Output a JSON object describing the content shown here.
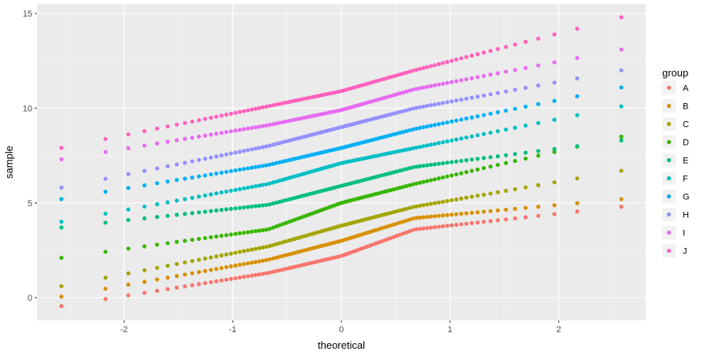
{
  "chart_data": {
    "type": "scatter",
    "xlabel": "theoretical",
    "ylabel": "sample",
    "xlim": [
      -2.8,
      2.8
    ],
    "ylim": [
      -1.2,
      15.5
    ],
    "x_ticks": [
      -2,
      -1,
      0,
      1,
      2
    ],
    "x_tick_labels": [
      "-2",
      "-1",
      "0",
      "1",
      "2"
    ],
    "y_ticks": [
      0,
      5,
      10,
      15
    ],
    "y_tick_labels": [
      "0",
      "5",
      "10",
      "15"
    ],
    "grid": true,
    "legend": {
      "title": "group",
      "position": "right"
    },
    "n_points_per_series": 100,
    "series": [
      {
        "name": "A",
        "color": "#F8766D",
        "x_range": [
          -2.58,
          2.58
        ],
        "y_min": -0.45,
        "y_q1": 1.3,
        "y_median": 2.2,
        "y_q3": 3.6,
        "y_max": 4.8
      },
      {
        "name": "B",
        "color": "#D89000",
        "x_range": [
          -2.58,
          2.58
        ],
        "y_min": 0.05,
        "y_q1": 2.0,
        "y_median": 3.0,
        "y_q3": 4.2,
        "y_max": 5.2
      },
      {
        "name": "C",
        "color": "#A3A500",
        "x_range": [
          -2.58,
          2.58
        ],
        "y_min": 0.6,
        "y_q1": 2.7,
        "y_median": 3.8,
        "y_q3": 4.8,
        "y_max": 6.7
      },
      {
        "name": "D",
        "color": "#39B600",
        "x_range": [
          -2.58,
          2.58
        ],
        "y_min": 2.1,
        "y_q1": 3.6,
        "y_median": 5.0,
        "y_q3": 6.0,
        "y_max": 8.5
      },
      {
        "name": "E",
        "color": "#00BF7D",
        "x_range": [
          -2.58,
          2.58
        ],
        "y_min": 3.7,
        "y_q1": 4.9,
        "y_median": 5.9,
        "y_q3": 6.9,
        "y_max": 8.3
      },
      {
        "name": "F",
        "color": "#00BFC4",
        "x_range": [
          -2.58,
          2.58
        ],
        "y_min": 4.0,
        "y_q1": 6.0,
        "y_median": 7.1,
        "y_q3": 7.9,
        "y_max": 10.1
      },
      {
        "name": "G",
        "color": "#00B0F6",
        "x_range": [
          -2.58,
          2.58
        ],
        "y_min": 5.2,
        "y_q1": 7.0,
        "y_median": 7.9,
        "y_q3": 8.9,
        "y_max": 11.1
      },
      {
        "name": "H",
        "color": "#9590FF",
        "x_range": [
          -2.58,
          2.58
        ],
        "y_min": 5.8,
        "y_q1": 8.0,
        "y_median": 9.0,
        "y_q3": 10.0,
        "y_max": 12.0
      },
      {
        "name": "I",
        "color": "#E76BF3",
        "x_range": [
          -2.58,
          2.58
        ],
        "y_min": 7.3,
        "y_q1": 9.1,
        "y_median": 9.9,
        "y_q3": 11.0,
        "y_max": 13.1
      },
      {
        "name": "J",
        "color": "#FF62BC",
        "x_range": [
          -2.58,
          2.58
        ],
        "y_min": 7.9,
        "y_q1": 10.1,
        "y_median": 10.9,
        "y_q3": 12.0,
        "y_max": 14.8
      }
    ]
  }
}
